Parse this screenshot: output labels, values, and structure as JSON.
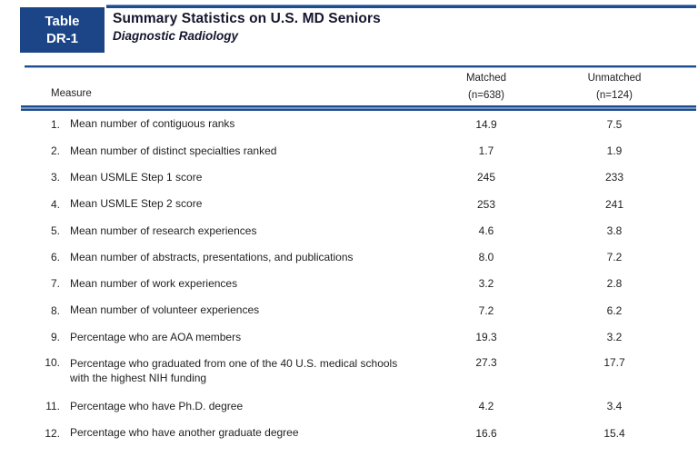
{
  "badge": {
    "line1": "Table",
    "line2": "DR-1"
  },
  "header": {
    "title": "Summary Statistics on U.S. MD Seniors",
    "subtitle": "Diagnostic Radiology"
  },
  "columns": {
    "measure": "Measure",
    "matched_label": "Matched",
    "matched_n": "(n=638)",
    "unmatched_label": "Unmatched",
    "unmatched_n": "(n=124)"
  },
  "rows": [
    {
      "num": "1.",
      "label": "Mean number of contiguous ranks",
      "matched": "14.9",
      "unmatched": "7.5"
    },
    {
      "num": "2.",
      "label": "Mean number of distinct specialties ranked",
      "matched": "1.7",
      "unmatched": "1.9"
    },
    {
      "num": "3.",
      "label": "Mean USMLE Step 1 score",
      "matched": "245",
      "unmatched": "233"
    },
    {
      "num": "4.",
      "label": "Mean USMLE Step 2 score",
      "matched": "253",
      "unmatched": "241"
    },
    {
      "num": "5.",
      "label": "Mean number of research experiences",
      "matched": "4.6",
      "unmatched": "3.8"
    },
    {
      "num": "6.",
      "label": "Mean number of abstracts, presentations, and publications",
      "matched": "8.0",
      "unmatched": "7.2"
    },
    {
      "num": "7.",
      "label": "Mean number of work experiences",
      "matched": "3.2",
      "unmatched": "2.8"
    },
    {
      "num": "8.",
      "label": "Mean number of volunteer experiences",
      "matched": "7.2",
      "unmatched": "6.2"
    },
    {
      "num": "9.",
      "label": "Percentage who are AOA members",
      "matched": "19.3",
      "unmatched": "3.2"
    },
    {
      "num": "10.",
      "label": "Percentage who graduated from one of the 40 U.S. medical schools with the highest NIH funding",
      "matched": "27.3",
      "unmatched": "17.7",
      "tall": true
    },
    {
      "num": "11.",
      "label": "Percentage who have Ph.D. degree",
      "matched": "4.2",
      "unmatched": "3.4"
    },
    {
      "num": "12.",
      "label": "Percentage who have another graduate degree",
      "matched": "16.6",
      "unmatched": "15.4"
    }
  ],
  "colors": {
    "navy_badge": "#1c4587",
    "navy_rule": "#1d4d8e",
    "rule_gap_blue": "#cfe0f2",
    "title_text": "#15152e",
    "body_text": "#1f1f1f"
  }
}
